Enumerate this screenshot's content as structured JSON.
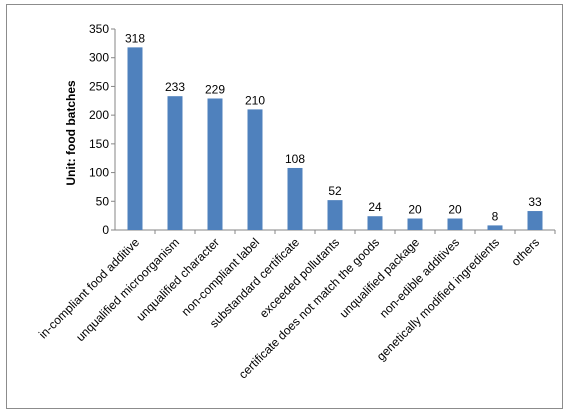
{
  "chart_data": {
    "type": "bar",
    "title": "",
    "xlabel": "",
    "ylabel": "Unit: food batches",
    "ylim": [
      0,
      350
    ],
    "yticks": [
      0,
      50,
      100,
      150,
      200,
      250,
      300,
      350
    ],
    "grid": false,
    "legend": "none",
    "bar_color": "#4f81bd",
    "categories": [
      "in-compliant food additive",
      "unqualified microorganism",
      "unqualified character",
      "non-compliant label",
      "substandard certificate",
      "exceeded pollutants",
      "certificate does not match the goods",
      "unqualified package",
      "non-edible additives",
      "genetically modified ingredients",
      "others"
    ],
    "values": [
      318,
      233,
      229,
      210,
      108,
      52,
      24,
      20,
      20,
      8,
      33
    ]
  }
}
